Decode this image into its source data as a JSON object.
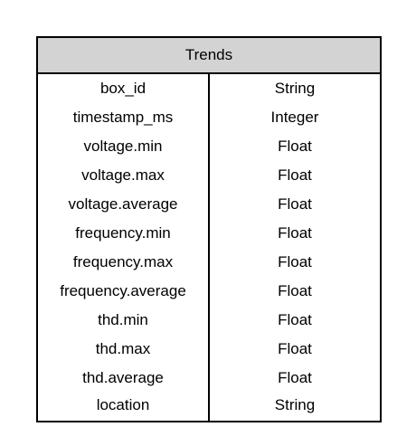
{
  "table": {
    "title": "Trends",
    "rows": [
      {
        "name": "box_id",
        "type": "String"
      },
      {
        "name": "timestamp_ms",
        "type": "Integer"
      },
      {
        "name": "voltage.min",
        "type": "Float"
      },
      {
        "name": "voltage.max",
        "type": "Float"
      },
      {
        "name": "voltage.average",
        "type": "Float"
      },
      {
        "name": "frequency.min",
        "type": "Float"
      },
      {
        "name": "frequency.max",
        "type": "Float"
      },
      {
        "name": "frequency.average",
        "type": "Float"
      },
      {
        "name": "thd.min",
        "type": "Float"
      },
      {
        "name": "thd.max",
        "type": "Float"
      },
      {
        "name": "thd.average",
        "type": "Float"
      },
      {
        "name": "location",
        "type": "String"
      }
    ]
  },
  "colors": {
    "header_bg": "#d3d3d3",
    "border": "#000000"
  }
}
